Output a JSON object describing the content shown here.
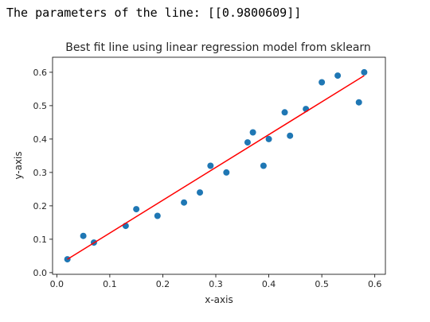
{
  "output": {
    "text": "The parameters of the line: [[0.9800609]]"
  },
  "chart_data": {
    "type": "scatter",
    "title": "Best fit line using linear regression model from sklearn",
    "xlabel": "x-axis",
    "ylabel": "y-axis",
    "xlim": [
      -0.008,
      0.62
    ],
    "ylim": [
      -0.005,
      0.645
    ],
    "xticks": [
      0.0,
      0.1,
      0.2,
      0.3,
      0.4,
      0.5,
      0.6
    ],
    "xtick_labels": [
      "0.0",
      "0.1",
      "0.2",
      "0.3",
      "0.4",
      "0.5",
      "0.6"
    ],
    "yticks": [
      0.0,
      0.1,
      0.2,
      0.3,
      0.4,
      0.5,
      0.6
    ],
    "ytick_labels": [
      "0.0",
      "0.1",
      "0.2",
      "0.3",
      "0.4",
      "0.5",
      "0.6"
    ],
    "grid": false,
    "series": [
      {
        "kind": "scatter",
        "color": "#1f77b4",
        "x": [
          0.02,
          0.05,
          0.07,
          0.13,
          0.15,
          0.19,
          0.24,
          0.27,
          0.29,
          0.32,
          0.36,
          0.37,
          0.39,
          0.4,
          0.43,
          0.44,
          0.47,
          0.5,
          0.53,
          0.57,
          0.58
        ],
        "y": [
          0.04,
          0.11,
          0.09,
          0.14,
          0.19,
          0.17,
          0.21,
          0.24,
          0.32,
          0.3,
          0.39,
          0.42,
          0.32,
          0.4,
          0.48,
          0.41,
          0.49,
          0.57,
          0.59,
          0.51,
          0.6
        ]
      },
      {
        "kind": "line",
        "color": "#ff0000",
        "x": [
          0.02,
          0.58
        ],
        "y": [
          0.04,
          0.59
        ]
      }
    ]
  }
}
